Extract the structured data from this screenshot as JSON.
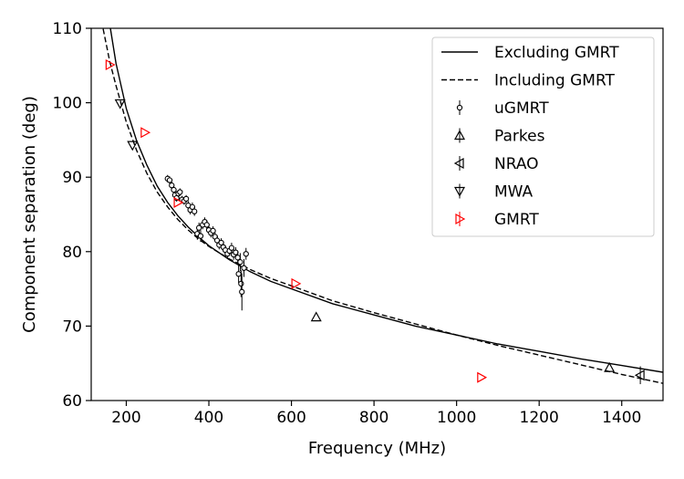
{
  "chart_data": {
    "type": "scatter",
    "xlabel": "Frequency (MHz)",
    "ylabel": "Component separation (deg)",
    "xlim": [
      115,
      1500
    ],
    "ylim": [
      60,
      110
    ],
    "xticks": [
      200,
      400,
      600,
      800,
      1000,
      1200,
      1400
    ],
    "yticks": [
      60,
      70,
      80,
      90,
      100,
      110
    ],
    "legend_position": "top-right",
    "grid": false,
    "lines": [
      {
        "name": "Excluding GMRT",
        "style": "solid",
        "color": "#000000",
        "x": [
          150,
          175,
          200,
          225,
          250,
          275,
          300,
          325,
          350,
          375,
          400,
          450,
          500,
          550,
          600,
          700,
          800,
          900,
          1000,
          1100,
          1200,
          1300,
          1400,
          1500
        ],
        "y": [
          114.0,
          105.3,
          99.2,
          94.9,
          91.6,
          88.8,
          86.6,
          84.8,
          83.3,
          82.0,
          80.8,
          78.9,
          77.3,
          76.0,
          75.0,
          73.0,
          71.5,
          70.0,
          68.8,
          67.6,
          66.6,
          65.6,
          64.7,
          63.8
        ]
      },
      {
        "name": "Including GMRT",
        "style": "dashed",
        "color": "#000000",
        "x": [
          140,
          160,
          175,
          200,
          225,
          250,
          275,
          300,
          325,
          350,
          375,
          400,
          450,
          500,
          550,
          600,
          700,
          800,
          900,
          1000,
          1100,
          1200,
          1300,
          1400,
          1500
        ],
        "y": [
          111.0,
          105.5,
          102.3,
          97.4,
          93.6,
          90.5,
          88.0,
          86.0,
          84.3,
          82.9,
          81.7,
          80.7,
          79.0,
          77.6,
          76.4,
          75.4,
          73.4,
          71.8,
          70.3,
          68.8,
          67.4,
          66.1,
          64.8,
          63.5,
          62.3
        ]
      }
    ],
    "series": [
      {
        "name": "uGMRT",
        "marker": "circle",
        "color": "#000000",
        "points": [
          {
            "x": 300,
            "y": 89.8,
            "err": 0.5
          },
          {
            "x": 305,
            "y": 89.6,
            "err": 0.5
          },
          {
            "x": 310,
            "y": 88.9,
            "err": 0.5
          },
          {
            "x": 315,
            "y": 88.3,
            "err": 0.5
          },
          {
            "x": 318,
            "y": 87.6,
            "err": 0.5
          },
          {
            "x": 322,
            "y": 87.2,
            "err": 0.5
          },
          {
            "x": 326,
            "y": 87.8,
            "err": 0.5
          },
          {
            "x": 330,
            "y": 88.0,
            "err": 0.5
          },
          {
            "x": 335,
            "y": 87.0,
            "err": 0.5
          },
          {
            "x": 340,
            "y": 86.8,
            "err": 0.5
          },
          {
            "x": 345,
            "y": 87.1,
            "err": 0.5
          },
          {
            "x": 350,
            "y": 86.2,
            "err": 0.6
          },
          {
            "x": 355,
            "y": 85.6,
            "err": 0.6
          },
          {
            "x": 360,
            "y": 86.0,
            "err": 0.6
          },
          {
            "x": 365,
            "y": 85.4,
            "err": 0.6
          },
          {
            "x": 372,
            "y": 82.4,
            "err": 0.8
          },
          {
            "x": 376,
            "y": 83.2,
            "err": 0.7
          },
          {
            "x": 380,
            "y": 82.1,
            "err": 0.8
          },
          {
            "x": 385,
            "y": 83.6,
            "err": 0.6
          },
          {
            "x": 390,
            "y": 84.0,
            "err": 0.6
          },
          {
            "x": 395,
            "y": 83.6,
            "err": 0.6
          },
          {
            "x": 400,
            "y": 82.9,
            "err": 0.6
          },
          {
            "x": 405,
            "y": 82.5,
            "err": 0.6
          },
          {
            "x": 410,
            "y": 82.8,
            "err": 0.6
          },
          {
            "x": 415,
            "y": 82.0,
            "err": 0.6
          },
          {
            "x": 420,
            "y": 81.5,
            "err": 0.6
          },
          {
            "x": 425,
            "y": 80.9,
            "err": 0.6
          },
          {
            "x": 430,
            "y": 81.2,
            "err": 0.6
          },
          {
            "x": 435,
            "y": 80.6,
            "err": 0.6
          },
          {
            "x": 440,
            "y": 80.2,
            "err": 0.6
          },
          {
            "x": 445,
            "y": 79.7,
            "err": 0.6
          },
          {
            "x": 450,
            "y": 80.1,
            "err": 0.6
          },
          {
            "x": 455,
            "y": 80.5,
            "err": 0.7
          },
          {
            "x": 460,
            "y": 79.6,
            "err": 0.7
          },
          {
            "x": 465,
            "y": 79.9,
            "err": 0.7
          },
          {
            "x": 470,
            "y": 79.2,
            "err": 0.8
          },
          {
            "x": 472,
            "y": 77.0,
            "err": 1.2
          },
          {
            "x": 476,
            "y": 78.6,
            "err": 1.2
          },
          {
            "x": 478,
            "y": 75.7,
            "err": 1.8
          },
          {
            "x": 480,
            "y": 74.6,
            "err": 2.5
          },
          {
            "x": 485,
            "y": 77.8,
            "err": 1.2
          },
          {
            "x": 490,
            "y": 79.7,
            "err": 0.8
          }
        ]
      },
      {
        "name": "Parkes",
        "marker": "triangle-up",
        "color": "#000000",
        "points": [
          {
            "x": 660,
            "y": 71.2
          },
          {
            "x": 1370,
            "y": 64.4
          }
        ]
      },
      {
        "name": "NRAO",
        "marker": "triangle-left",
        "color": "#000000",
        "points": [
          {
            "x": 1445,
            "y": 63.4,
            "err": 1.2
          }
        ]
      },
      {
        "name": "MWA",
        "marker": "triangle-down",
        "color": "#000000",
        "points": [
          {
            "x": 185,
            "y": 99.9
          },
          {
            "x": 215,
            "y": 94.3
          }
        ]
      },
      {
        "name": "GMRT",
        "marker": "triangle-right",
        "color": "#ff0000",
        "points": [
          {
            "x": 160,
            "y": 105.1
          },
          {
            "x": 245,
            "y": 96.0
          },
          {
            "x": 325,
            "y": 86.6
          },
          {
            "x": 610,
            "y": 75.7
          },
          {
            "x": 1060,
            "y": 63.1
          }
        ]
      }
    ]
  }
}
